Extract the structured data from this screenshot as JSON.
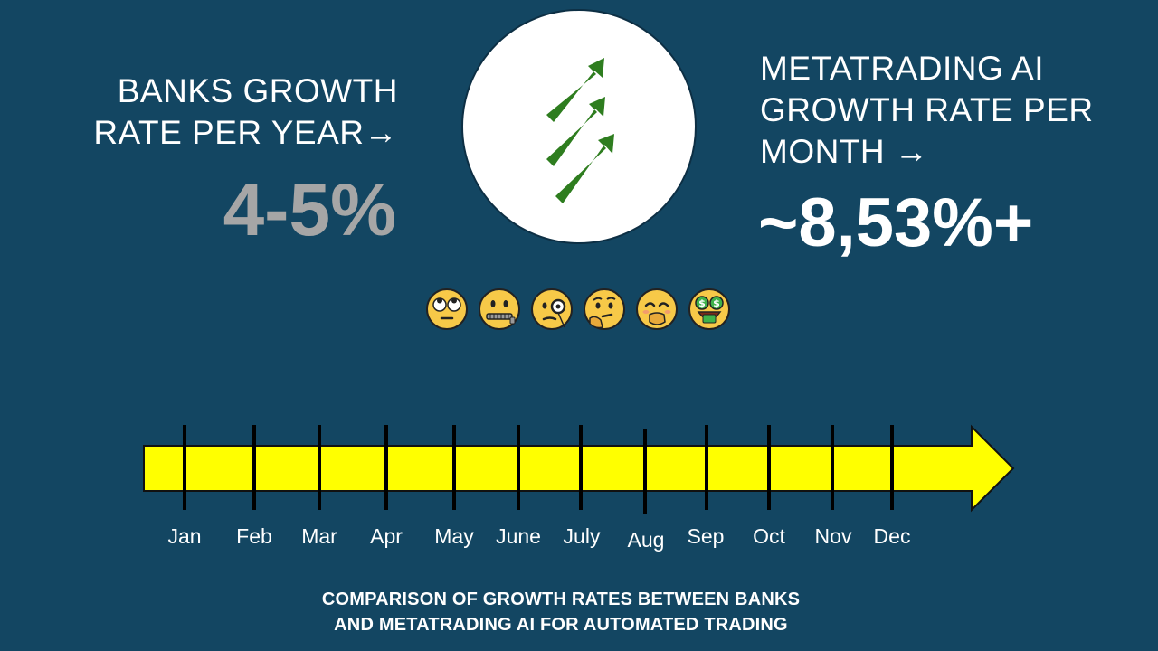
{
  "banks": {
    "heading_line1": "BANKS GROWTH",
    "heading_line2": "RATE PER YEAR→",
    "value": "4-5%",
    "value_color": "#a6a6a6"
  },
  "metatrading": {
    "heading_line1": "METATRADING AI",
    "heading_line2": "GROWTH RATE PER",
    "heading_line3": "MONTH →",
    "value": "~8,53%+",
    "value_color": "#ffffff"
  },
  "logo": {
    "icon": "growth-arrows-icon",
    "arrow_color": "#2e7d1f"
  },
  "emojis": [
    {
      "icon": "face-with-rolling-eyes-icon"
    },
    {
      "icon": "zipper-mouth-face-icon"
    },
    {
      "icon": "face-with-monocle-icon"
    },
    {
      "icon": "thinking-face-icon"
    },
    {
      "icon": "face-with-hand-over-mouth-icon"
    },
    {
      "icon": "money-mouth-face-icon"
    }
  ],
  "timeline": {
    "color": "#ffff00",
    "months": [
      "Jan",
      "Feb",
      "Mar",
      "Apr",
      "May",
      "June",
      "July",
      "Aug",
      "Sep",
      "Oct",
      "Nov",
      "Dec"
    ]
  },
  "caption": {
    "line1": "COMPARISON OF GROWTH RATES BETWEEN BANKS",
    "line2": "AND METATRADING AI FOR AUTOMATED TRADING"
  },
  "colors": {
    "background": "#134662",
    "text": "#ffffff"
  }
}
